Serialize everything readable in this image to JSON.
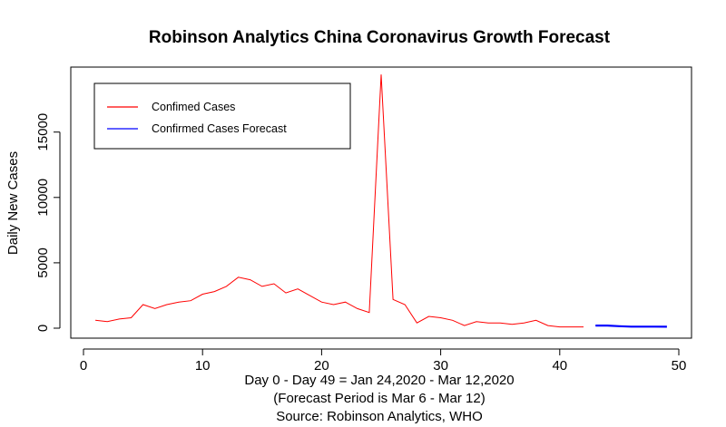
{
  "chart_data": {
    "type": "line",
    "title": "Robinson Analytics China Coronavirus Growth Forecast",
    "xlabel_lines": [
      "Day 0 - Day 49 = Jan 24,2020 - Mar 12,2020",
      "(Forecast Period is Mar 6 - Mar 12)",
      "Source: Robinson Analytics, WHO"
    ],
    "ylabel": "Daily New Cases",
    "xlim": [
      0,
      50
    ],
    "ylim": [
      0,
      19000
    ],
    "x_ticks": [
      0,
      10,
      20,
      30,
      40,
      50
    ],
    "y_ticks": [
      0,
      5000,
      10000,
      15000
    ],
    "grid": false,
    "legend_position": "top-left",
    "series": [
      {
        "name": "Confimed Cases",
        "color": "#ff0000",
        "x": [
          1,
          2,
          3,
          4,
          5,
          6,
          7,
          8,
          9,
          10,
          11,
          12,
          13,
          14,
          15,
          16,
          17,
          18,
          19,
          20,
          21,
          22,
          23,
          24,
          25,
          26,
          27,
          28,
          29,
          30,
          31,
          32,
          33,
          34,
          35,
          36,
          37,
          38,
          39,
          40,
          41,
          42
        ],
        "values": [
          600,
          500,
          700,
          800,
          1800,
          1500,
          1800,
          2000,
          2100,
          2600,
          2800,
          3200,
          3900,
          3700,
          3200,
          3400,
          2700,
          3000,
          2500,
          2000,
          1800,
          2000,
          1500,
          1200,
          19400,
          2200,
          1800,
          400,
          900,
          800,
          600,
          200,
          500,
          400,
          400,
          300,
          400,
          600,
          200,
          100,
          100,
          100
        ]
      },
      {
        "name": "Confirmed Cases Forecast",
        "color": "#0000ff",
        "x": [
          43,
          44,
          45,
          46,
          47,
          48,
          49
        ],
        "values": [
          200,
          200,
          150,
          120,
          120,
          120,
          110
        ]
      }
    ]
  }
}
